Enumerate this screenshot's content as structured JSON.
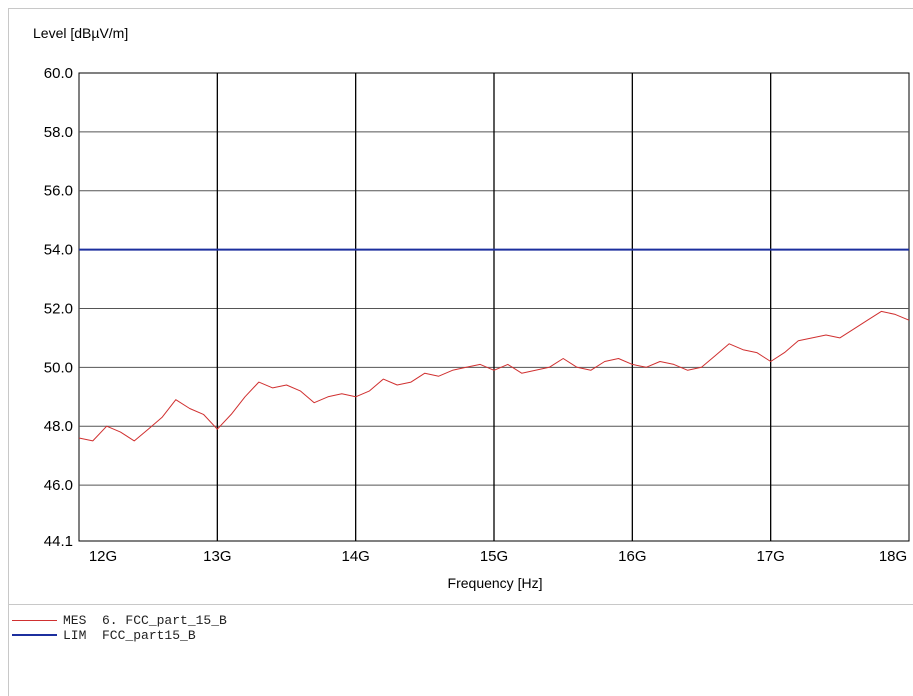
{
  "chart_data": {
    "type": "line",
    "ylabel": "Level [dBµV/m]",
    "xlabel": "Frequency [Hz]",
    "xlim": [
      12000000000,
      18000000000
    ],
    "ylim": [
      44.1,
      60.0
    ],
    "xticks": [
      {
        "value": 12000000000,
        "label": "12G"
      },
      {
        "value": 13000000000,
        "label": "13G"
      },
      {
        "value": 14000000000,
        "label": "14G"
      },
      {
        "value": 15000000000,
        "label": "15G"
      },
      {
        "value": 16000000000,
        "label": "16G"
      },
      {
        "value": 17000000000,
        "label": "17G"
      },
      {
        "value": 18000000000,
        "label": "18G"
      }
    ],
    "yticks": [
      {
        "value": 44.1,
        "label": "44.1"
      },
      {
        "value": 46.0,
        "label": "46.0"
      },
      {
        "value": 48.0,
        "label": "48.0"
      },
      {
        "value": 50.0,
        "label": "50.0"
      },
      {
        "value": 52.0,
        "label": "52.0"
      },
      {
        "value": 54.0,
        "label": "54.0"
      },
      {
        "value": 56.0,
        "label": "56.0"
      },
      {
        "value": 58.0,
        "label": "58.0"
      },
      {
        "value": 60.0,
        "label": "60.0"
      }
    ],
    "grid": true,
    "series": [
      {
        "name": "MES  6. FCC_part_15_B",
        "color": "#d03030",
        "x": [
          12000000000,
          12100000000,
          12200000000,
          12300000000,
          12400000000,
          12500000000,
          12600000000,
          12700000000,
          12800000000,
          12900000000,
          13000000000,
          13100000000,
          13200000000,
          13300000000,
          13400000000,
          13500000000,
          13600000000,
          13700000000,
          13800000000,
          13900000000,
          14000000000,
          14100000000,
          14200000000,
          14300000000,
          14400000000,
          14500000000,
          14600000000,
          14700000000,
          14800000000,
          14900000000,
          15000000000,
          15100000000,
          15200000000,
          15300000000,
          15400000000,
          15500000000,
          15600000000,
          15700000000,
          15800000000,
          15900000000,
          16000000000,
          16100000000,
          16200000000,
          16300000000,
          16400000000,
          16500000000,
          16600000000,
          16700000000,
          16800000000,
          16900000000,
          17000000000,
          17100000000,
          17200000000,
          17300000000,
          17400000000,
          17500000000,
          17600000000,
          17700000000,
          17800000000,
          17900000000,
          18000000000
        ],
        "y": [
          47.6,
          47.5,
          48.0,
          47.8,
          47.5,
          47.9,
          48.3,
          48.9,
          48.6,
          48.4,
          47.9,
          48.4,
          49.0,
          49.5,
          49.3,
          49.4,
          49.2,
          48.8,
          49.0,
          49.1,
          49.0,
          49.2,
          49.6,
          49.4,
          49.5,
          49.8,
          49.7,
          49.9,
          50.0,
          50.1,
          49.9,
          50.1,
          49.8,
          49.9,
          50.0,
          50.3,
          50.0,
          49.9,
          50.2,
          50.3,
          50.1,
          50.0,
          50.2,
          50.1,
          49.9,
          50.0,
          50.4,
          50.8,
          50.6,
          50.5,
          50.2,
          50.5,
          50.9,
          51.0,
          51.1,
          51.0,
          51.3,
          51.6,
          51.9,
          51.8,
          51.6
        ]
      },
      {
        "name": "LIM  FCC_part15_B",
        "color": "#1c2f9e",
        "x": [
          12000000000,
          18000000000
        ],
        "y": [
          54.0,
          54.0
        ]
      }
    ]
  },
  "legend": [
    {
      "label": "MES  6. FCC_part_15_B",
      "color": "#d03030"
    },
    {
      "label": "LIM  FCC_part15_B",
      "color": "#1c2f9e"
    }
  ]
}
